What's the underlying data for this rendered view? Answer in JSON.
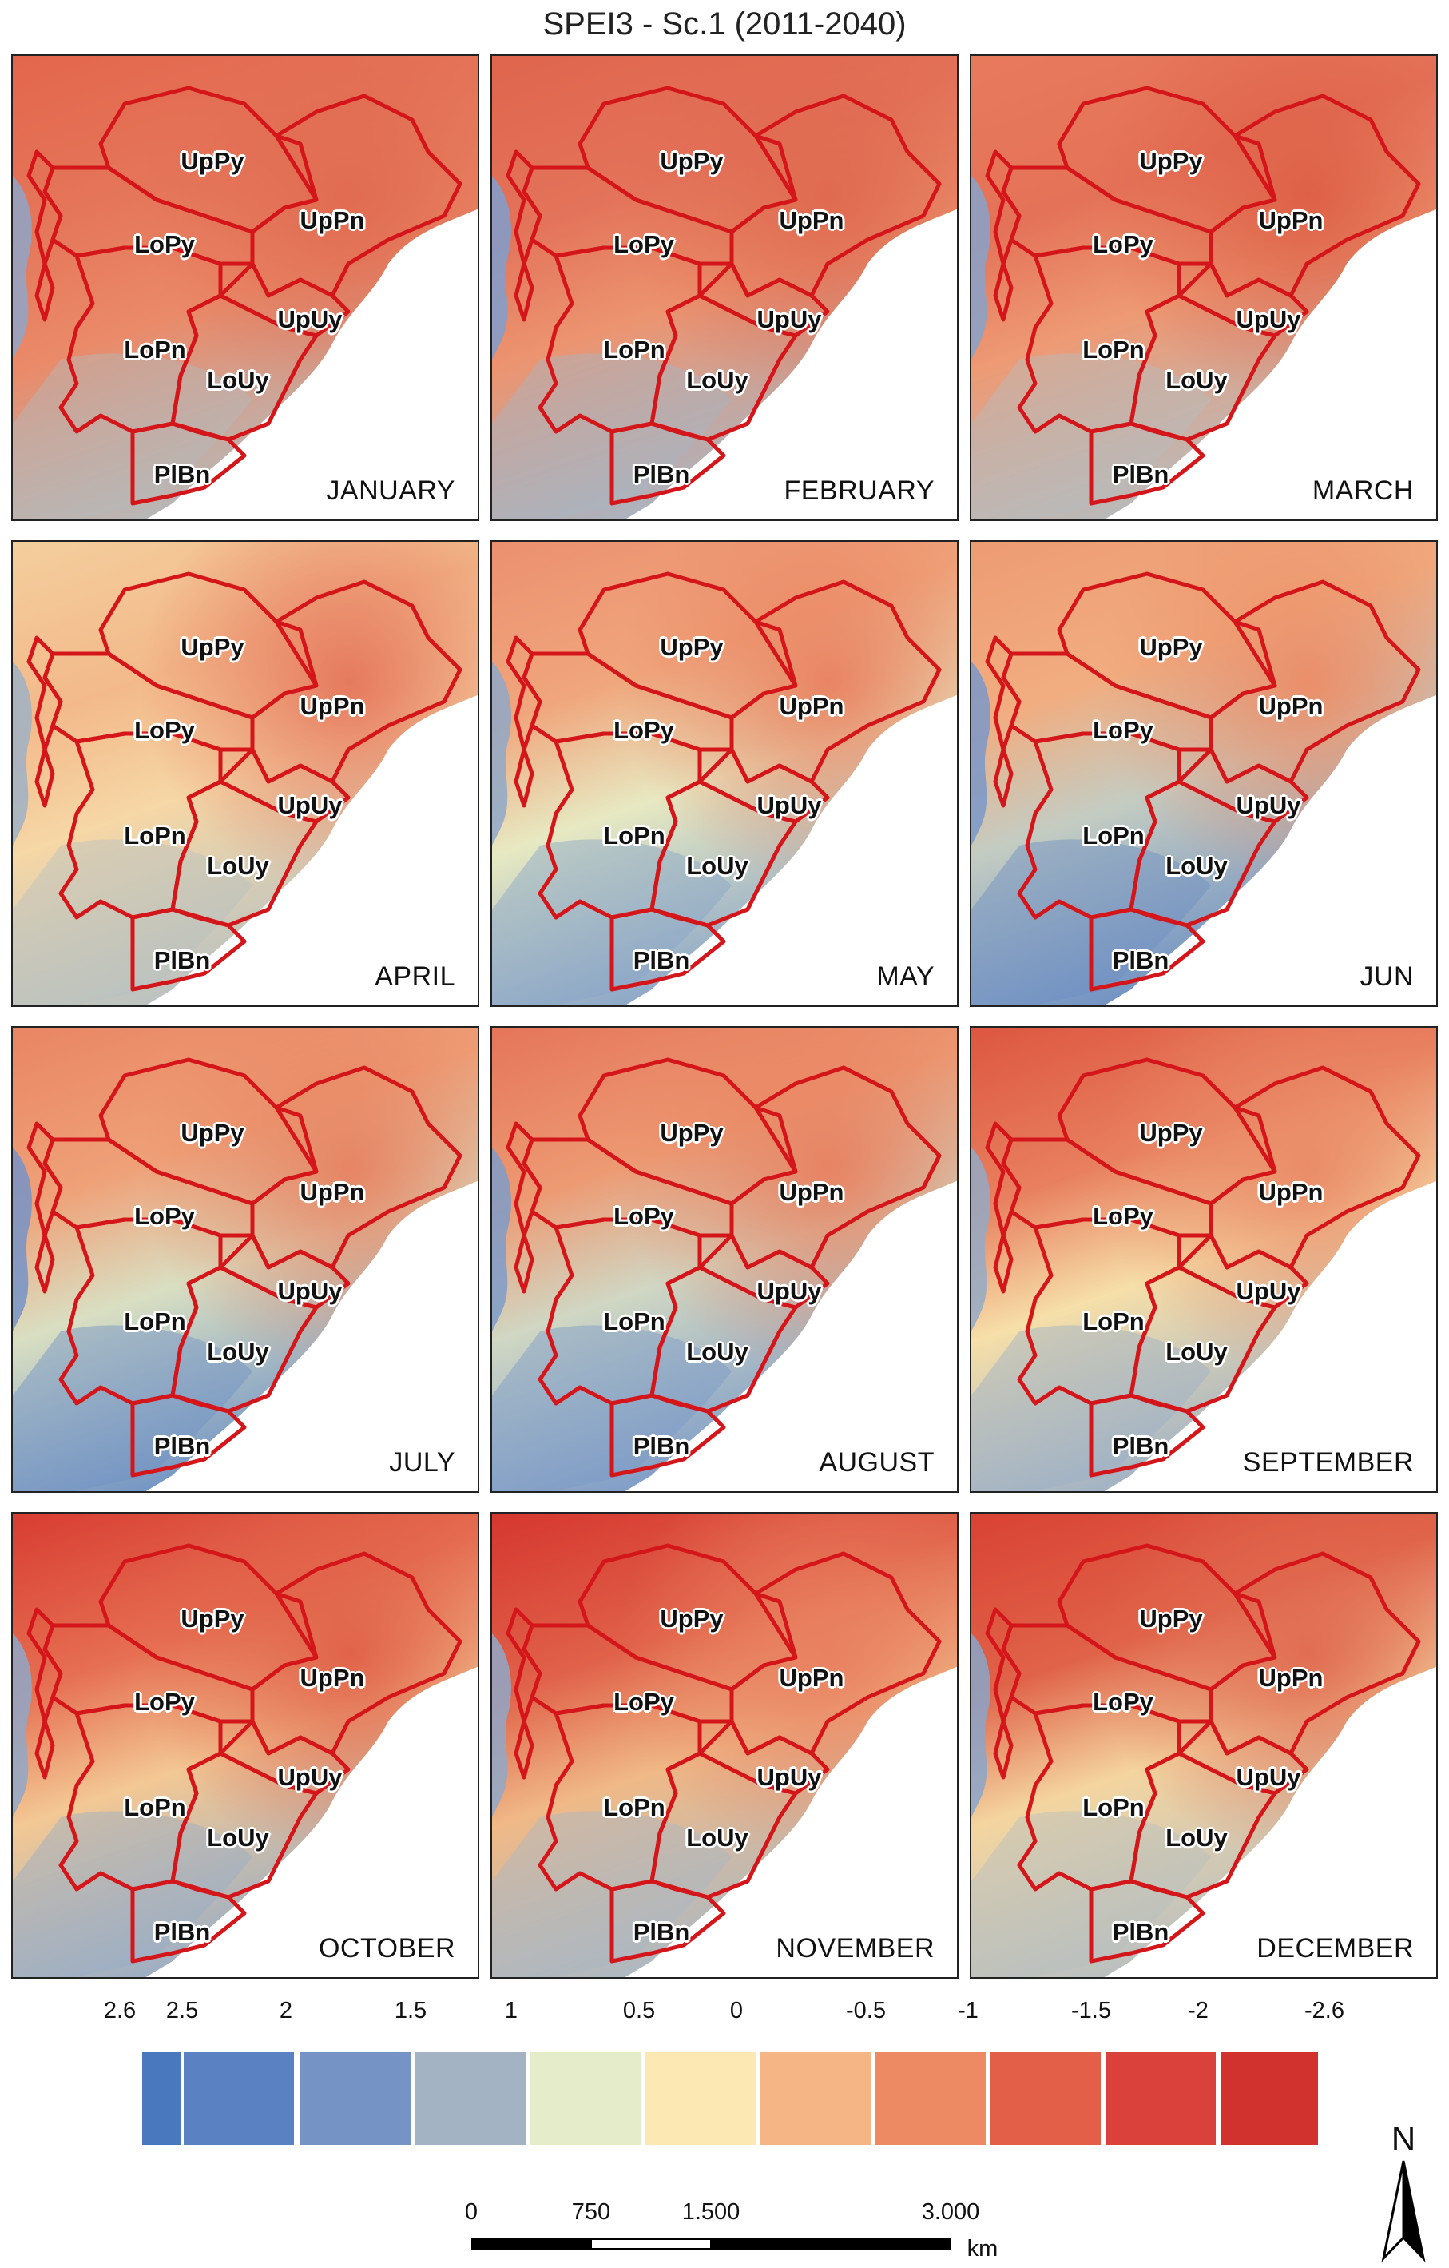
{
  "title": "SPEI3 - Sc.1 (2011-2040)",
  "basin_labels": [
    "UpPy",
    "UpPn",
    "LoPy",
    "UpUy",
    "LoPn",
    "LoUy",
    "PlBn"
  ],
  "panels": [
    {
      "month": "JANUARY",
      "fill": [
        "#e5765a",
        "#e06a50",
        "#ea8a68",
        "#b4bbbd",
        "#e3664c"
      ],
      "sea": "#8fa6c8"
    },
    {
      "month": "FEBRUARY",
      "fill": [
        "#e3735a",
        "#df684e",
        "#ec9470",
        "#a7b5c4",
        "#e0654d"
      ],
      "sea": "#7f9fcf"
    },
    {
      "month": "MARCH",
      "fill": [
        "#e47258",
        "#dd5e45",
        "#ee9a74",
        "#b5bcbf",
        "#e87a5c"
      ],
      "sea": "#86a3cb"
    },
    {
      "month": "APRIL",
      "fill": [
        "#f3b98a",
        "#e5755b",
        "#f6d7a6",
        "#b7c1c2",
        "#f4ce9d"
      ],
      "sea": "#9eb2c6"
    },
    {
      "month": "MAY",
      "fill": [
        "#f0a67c",
        "#e9805f",
        "#e7e9c2",
        "#87a3c8",
        "#ec9070"
      ],
      "sea": "#8fa8c8"
    },
    {
      "month": "JUN",
      "fill": [
        "#f1ad80",
        "#ec8c66",
        "#c4ccc2",
        "#6c8fc3",
        "#ee9b72"
      ],
      "sea": "#7a98c9"
    },
    {
      "month": "JULY",
      "fill": [
        "#efa178",
        "#e78160",
        "#d9dfc2",
        "#6e91c5",
        "#e98563"
      ],
      "sea": "#7593c8"
    },
    {
      "month": "AUGUST",
      "fill": [
        "#ed9a73",
        "#e8805f",
        "#d0d7c3",
        "#7b9ac8",
        "#e57559"
      ],
      "sea": "#7e9cc9"
    },
    {
      "month": "SEPTEMBER",
      "fill": [
        "#e8805f",
        "#ea8a66",
        "#f6dfa9",
        "#9cb0c7",
        "#dd5640"
      ],
      "sea": "#93aac6"
    },
    {
      "month": "OCTOBER",
      "fill": [
        "#e66f52",
        "#e06047",
        "#f3c894",
        "#97adc7",
        "#d83d32"
      ],
      "sea": "#8fa8c8"
    },
    {
      "month": "NOVEMBER",
      "fill": [
        "#e06149",
        "#e9805f",
        "#f0b987",
        "#a9b9c5",
        "#d6372f"
      ],
      "sea": "#90a8c8"
    },
    {
      "month": "DECEMBER",
      "fill": [
        "#e06349",
        "#e06a50",
        "#f4d5a0",
        "#b6bfc2",
        "#d94233"
      ],
      "sea": "#8aa6ca"
    }
  ],
  "legend": {
    "ticks": [
      "2.6",
      "2.5",
      "2",
      "1.5",
      "1",
      "0.5",
      "0",
      "-0.5",
      "-1",
      "-1.5",
      "-2",
      "-2.6"
    ],
    "colors": [
      "#4a78bf",
      "#5a82c3",
      "#7594c5",
      "#a4b3c4",
      "#e5ecc9",
      "#fbe8b2",
      "#f6b585",
      "#ee8a63",
      "#e35f47",
      "#d9413a",
      "#d2322e"
    ]
  },
  "scalebar": {
    "labels": [
      "0",
      "750",
      "1.500",
      "3.000"
    ],
    "unit": "km"
  },
  "north_label": "N"
}
